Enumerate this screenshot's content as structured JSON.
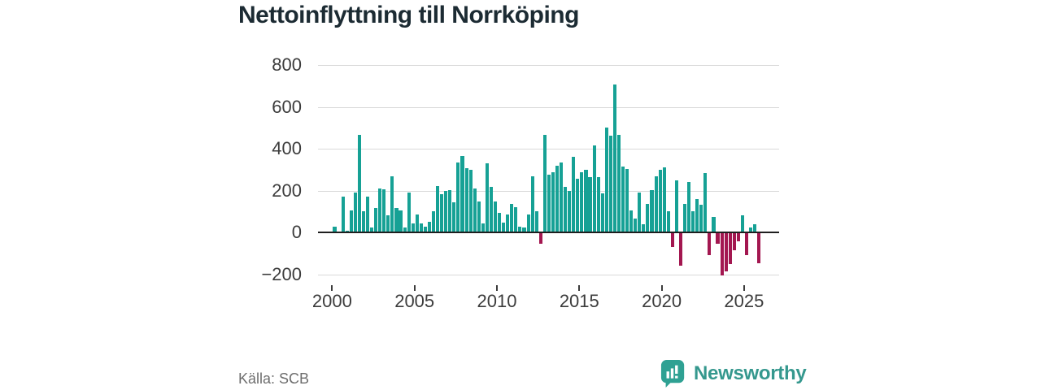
{
  "title": "Nettoinflyttning till Norrköping",
  "source": "Källa: SCB",
  "brand": {
    "name": "Newsworthy",
    "icon": "newsworthy-speech-bubble-chart-icon",
    "color": "#35988e"
  },
  "colors": {
    "positive": "#16a195",
    "negative": "#a31750",
    "grid": "#d9d9d9",
    "zero_line": "#1f1f1f",
    "axis_text": "#3c3c3c",
    "title_text": "#1c2b33",
    "source_text": "#6e6e6e"
  },
  "chart_data": {
    "type": "bar",
    "title": "Nettoinflyttning till Norrköping",
    "frequency": "quarterly",
    "x_start": "2000 Q1",
    "x_end": "2025 Q4",
    "grid": "horizontal",
    "legend": "none",
    "ylim": [
      -260,
      870
    ],
    "y_ticks": [
      800,
      600,
      400,
      200,
      0,
      -200
    ],
    "y_tick_labels": [
      "800",
      "600",
      "400",
      "200",
      "0",
      "−200"
    ],
    "x_tick_years": [
      2000,
      2005,
      2010,
      2015,
      2020,
      2025
    ],
    "x_tick_labels": [
      "2000",
      "2005",
      "2010",
      "2015",
      "2020",
      "2025"
    ],
    "values": [
      28,
      5,
      173,
      8,
      106,
      190,
      465,
      102,
      172,
      22,
      115,
      211,
      205,
      80,
      268,
      115,
      105,
      22,
      190,
      44,
      85,
      41,
      28,
      50,
      101,
      220,
      181,
      197,
      204,
      142,
      333,
      367,
      307,
      300,
      210,
      149,
      41,
      332,
      216,
      149,
      93,
      45,
      84,
      138,
      119,
      28,
      22,
      87,
      268,
      100,
      -53,
      465,
      277,
      287,
      317,
      333,
      216,
      197,
      361,
      258,
      287,
      300,
      265,
      415,
      264,
      186,
      503,
      462,
      708,
      466,
      313,
      303,
      106,
      67,
      190,
      40,
      136,
      203,
      270,
      300,
      310,
      100,
      -69,
      248,
      -159,
      138,
      242,
      100,
      158,
      132,
      283,
      -107,
      74,
      -56,
      -204,
      -185,
      -150,
      -84,
      -43,
      83,
      -107,
      22,
      38,
      -149
    ]
  }
}
